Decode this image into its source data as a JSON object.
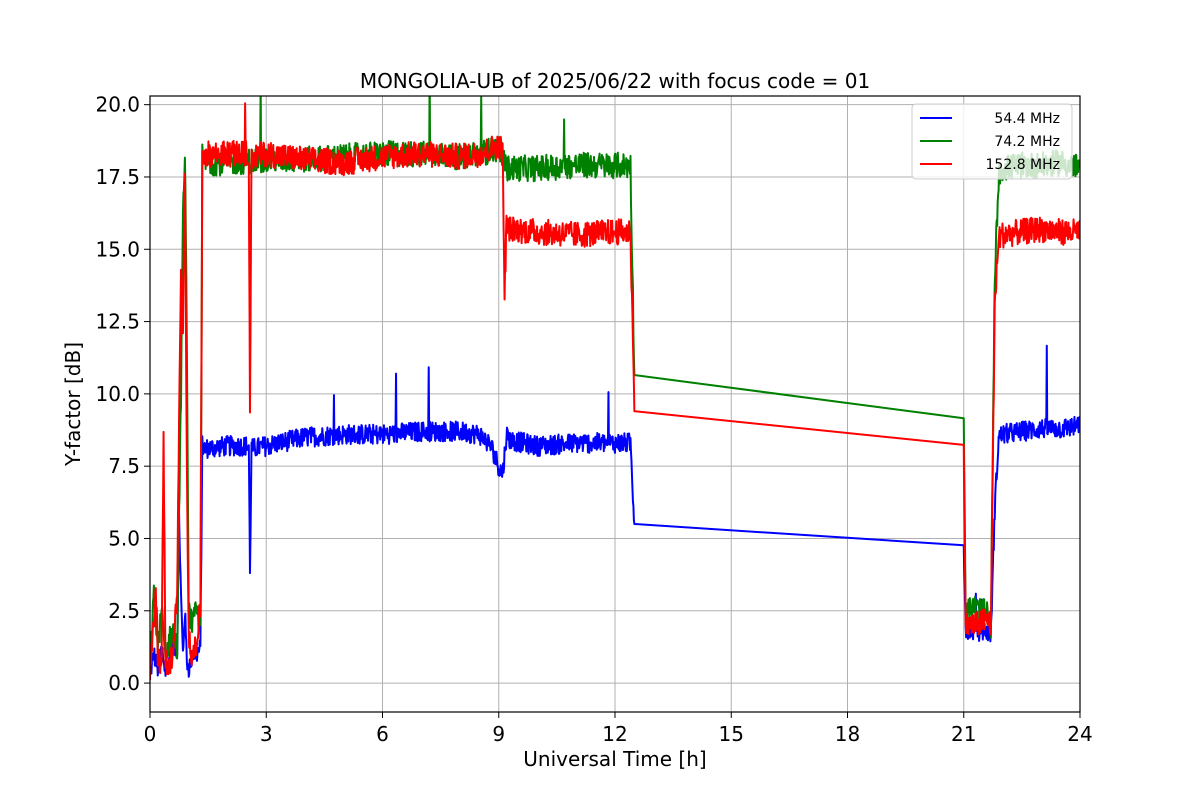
{
  "chart_data": {
    "type": "line",
    "title": "MONGOLIA-UB of 2025/06/22 with focus code = 01",
    "xlabel": "Universal Time [h]",
    "ylabel": "Y-factor [dB]",
    "xlim": [
      0,
      24
    ],
    "ylim": [
      -1,
      20.3
    ],
    "xticks": [
      0,
      3,
      6,
      9,
      12,
      15,
      18,
      21,
      24
    ],
    "xtick_labels": [
      "0",
      "3",
      "6",
      "9",
      "12",
      "15",
      "18",
      "21",
      "24"
    ],
    "yticks": [
      0,
      2.5,
      5,
      7.5,
      10,
      12.5,
      15,
      17.5,
      20
    ],
    "ytick_labels": [
      "0.0",
      "2.5",
      "5.0",
      "7.5",
      "10.0",
      "12.5",
      "15.0",
      "17.5",
      "20.0"
    ],
    "grid": true,
    "legend_position": "top-right",
    "series": [
      {
        "name": "54.4 MHz",
        "color": "#0000ff",
        "noise": 0.35,
        "x": [
          0,
          0.1,
          0.2,
          0.3,
          0.4,
          0.5,
          0.6,
          0.7,
          0.75,
          0.8,
          0.85,
          0.9,
          0.95,
          1.0,
          1.1,
          1.2,
          1.3,
          1.35,
          1.4,
          2.0,
          2.55,
          2.58,
          2.62,
          3.0,
          4.0,
          5.0,
          6.0,
          7.0,
          8.0,
          8.5,
          8.8,
          9.0,
          9.1,
          9.2,
          9.3,
          10.0,
          11.0,
          12.0,
          12.4,
          12.5,
          21.0,
          21.05,
          21.3,
          21.6,
          21.7,
          21.8,
          21.9,
          22.0,
          22.5,
          23.0,
          23.5,
          24.0
        ],
        "y": [
          0.3,
          1.0,
          0.5,
          1.2,
          0.4,
          0.8,
          1.5,
          1.0,
          5.8,
          3.0,
          1.0,
          2.5,
          0.8,
          0.5,
          1.0,
          1.0,
          1.2,
          8.2,
          8.1,
          8.2,
          8.2,
          3.9,
          8.1,
          8.2,
          8.5,
          8.6,
          8.6,
          8.7,
          8.7,
          8.6,
          8.2,
          7.5,
          7.2,
          8.6,
          8.4,
          8.2,
          8.3,
          8.3,
          8.3,
          5.5,
          4.85,
          1.9,
          1.8,
          1.8,
          1.7,
          6.0,
          8.5,
          8.6,
          8.7,
          8.8,
          8.8,
          8.9
        ]
      },
      {
        "name": "74.2 MHz",
        "color": "#008000",
        "noise": 0.45,
        "x": [
          0,
          0.1,
          0.2,
          0.3,
          0.4,
          0.5,
          0.6,
          0.7,
          0.8,
          0.85,
          0.9,
          0.95,
          1.0,
          1.1,
          1.2,
          1.3,
          1.35,
          1.4,
          2.0,
          3.0,
          4.0,
          5.0,
          6.0,
          7.0,
          8.0,
          8.5,
          9.0,
          9.1,
          9.15,
          9.2,
          9.3,
          10.0,
          11.0,
          12.0,
          12.4,
          12.5,
          21.0,
          21.05,
          21.3,
          21.6,
          21.7,
          21.8,
          21.9,
          22.0,
          22.5,
          23.0,
          23.5,
          24.0
        ],
        "y": [
          0.8,
          3.0,
          1.2,
          2.5,
          0.8,
          1.5,
          1.8,
          1.2,
          10.0,
          16.0,
          18.5,
          12.0,
          2.5,
          2.0,
          2.5,
          2.0,
          18.2,
          18.0,
          18.0,
          18.1,
          18.1,
          18.2,
          18.3,
          18.3,
          18.2,
          18.3,
          18.5,
          18.4,
          18.0,
          17.8,
          17.8,
          17.8,
          17.9,
          17.9,
          17.9,
          10.65,
          9.05,
          2.5,
          2.6,
          2.4,
          2.0,
          14.0,
          17.5,
          17.8,
          17.9,
          17.9,
          18.0,
          17.8
        ]
      },
      {
        "name": "152.8 MHz",
        "color": "#ff0000",
        "noise": 0.45,
        "x": [
          0,
          0.1,
          0.15,
          0.2,
          0.3,
          0.35,
          0.4,
          0.5,
          0.6,
          0.7,
          0.75,
          0.8,
          0.85,
          0.9,
          0.95,
          1.0,
          1.1,
          1.2,
          1.3,
          1.35,
          1.4,
          2.0,
          2.55,
          2.58,
          2.62,
          3.0,
          4.0,
          5.0,
          6.0,
          7.0,
          8.0,
          8.5,
          9.0,
          9.1,
          9.15,
          9.2,
          9.3,
          10.0,
          11.0,
          12.0,
          12.4,
          12.5,
          21.0,
          21.05,
          21.3,
          21.6,
          21.7,
          21.8,
          21.9,
          22.0,
          22.5,
          23.0,
          23.5,
          24.0
        ],
        "y": [
          0.4,
          2.0,
          3.5,
          1.0,
          0.6,
          8.5,
          0.8,
          0.5,
          1.2,
          3.0,
          9.0,
          14.0,
          12.0,
          18.0,
          8.0,
          1.5,
          0.8,
          1.5,
          2.5,
          18.2,
          18.3,
          18.3,
          18.3,
          9.5,
          18.2,
          18.3,
          18.1,
          18.0,
          18.2,
          18.3,
          18.2,
          18.3,
          18.6,
          18.3,
          13.5,
          15.8,
          15.7,
          15.6,
          15.5,
          15.6,
          15.6,
          9.4,
          8.1,
          2.0,
          2.0,
          2.2,
          2.0,
          13.0,
          15.4,
          15.5,
          15.6,
          15.7,
          15.6,
          15.6
        ]
      }
    ]
  }
}
